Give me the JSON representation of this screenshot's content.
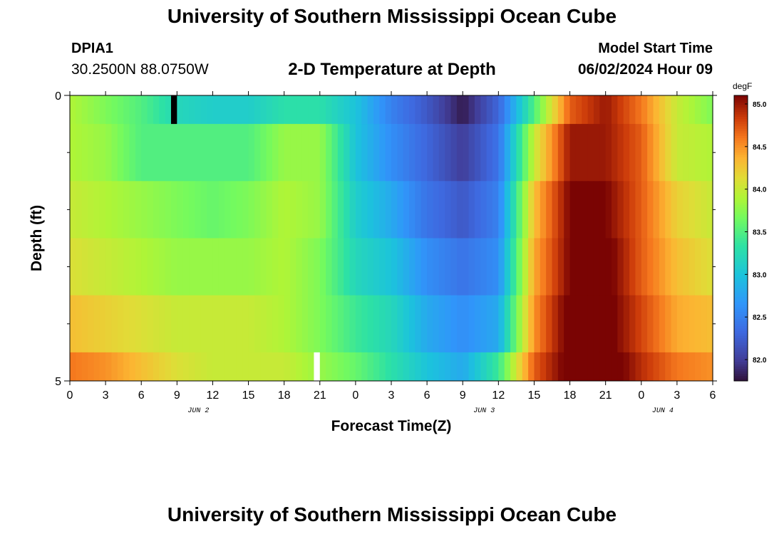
{
  "header": {
    "title": "University of Southern Mississippi Ocean Cube",
    "station": "DPIA1",
    "coordinates": "30.2500N  88.0750W",
    "subtitle": "2-D Temperature at Depth",
    "model_start_label": "Model Start Time",
    "model_start_value": "06/02/2024 Hour 09"
  },
  "footer": {
    "title": "University of Southern Mississippi Ocean Cube"
  },
  "chart_data": {
    "type": "heatmap",
    "xlabel": "Forecast Time(Z)",
    "ylabel": "Depth (ft)",
    "x_ticks": [
      "0",
      "3",
      "6",
      "9",
      "12",
      "15",
      "18",
      "21",
      "0",
      "3",
      "6",
      "9",
      "12",
      "15",
      "18",
      "21",
      "0",
      "3",
      "6"
    ],
    "date_labels": [
      {
        "label": "JUN 2",
        "x_index": 3.6
      },
      {
        "label": "JUN 3",
        "x_index": 11.6
      },
      {
        "label": "JUN 4",
        "x_index": 16.6
      }
    ],
    "y_tick_labels": [
      "0",
      "5"
    ],
    "ylim": [
      0,
      5
    ],
    "y_minor_ticks": [
      1,
      2,
      3,
      4
    ],
    "xlim_hours": [
      0,
      54
    ],
    "depth_band_edges": [
      0,
      0.5,
      1.5,
      2.5,
      3.5,
      4.5,
      5
    ],
    "hours": [
      0,
      3,
      6,
      9,
      12,
      15,
      18,
      21,
      24,
      27,
      30,
      33,
      36,
      39,
      42,
      45,
      48,
      51,
      54
    ],
    "temperature_degF": [
      [
        83.9,
        83.7,
        83.5,
        83.2,
        83.1,
        83.1,
        83.3,
        83.3,
        83.0,
        82.5,
        82.2,
        81.8,
        82.3,
        83.5,
        84.7,
        85.0,
        84.6,
        84.0,
        83.7
      ],
      [
        83.9,
        83.8,
        83.5,
        83.5,
        83.5,
        83.5,
        83.8,
        83.8,
        83.0,
        82.6,
        82.3,
        82.0,
        82.4,
        84.0,
        85.0,
        85.0,
        84.7,
        84.0,
        83.9
      ],
      [
        84.0,
        83.9,
        83.8,
        83.7,
        83.6,
        83.7,
        83.9,
        83.8,
        83.1,
        82.8,
        82.4,
        82.2,
        82.5,
        84.3,
        85.1,
        85.1,
        84.7,
        84.2,
        84.0
      ],
      [
        84.1,
        84.0,
        83.9,
        83.8,
        83.8,
        83.8,
        83.9,
        83.7,
        83.2,
        83.0,
        82.6,
        82.4,
        82.6,
        84.4,
        85.1,
        85.2,
        84.7,
        84.3,
        84.1
      ],
      [
        84.3,
        84.2,
        84.1,
        84.0,
        84.0,
        84.0,
        83.9,
        83.7,
        83.4,
        83.2,
        82.8,
        82.6,
        82.8,
        84.5,
        85.2,
        85.2,
        84.8,
        84.4,
        84.3
      ],
      [
        84.6,
        84.5,
        84.3,
        84.1,
        84.0,
        84.0,
        84.0,
        83.8,
        83.6,
        83.3,
        83.0,
        82.8,
        83.4,
        84.7,
        85.2,
        85.3,
        84.9,
        84.6,
        84.5
      ]
    ],
    "special_cells": [
      {
        "hour": 8.5,
        "band": 0,
        "color": "#000000"
      },
      {
        "hour": 20.5,
        "band": 5,
        "color": "#ffffff"
      }
    ],
    "colorbar": {
      "unit": "degF",
      "min": 81.75,
      "max": 85.1,
      "ticks": [
        "82.0",
        "82.5",
        "83.0",
        "83.5",
        "84.0",
        "84.5",
        "85.0"
      ]
    }
  }
}
